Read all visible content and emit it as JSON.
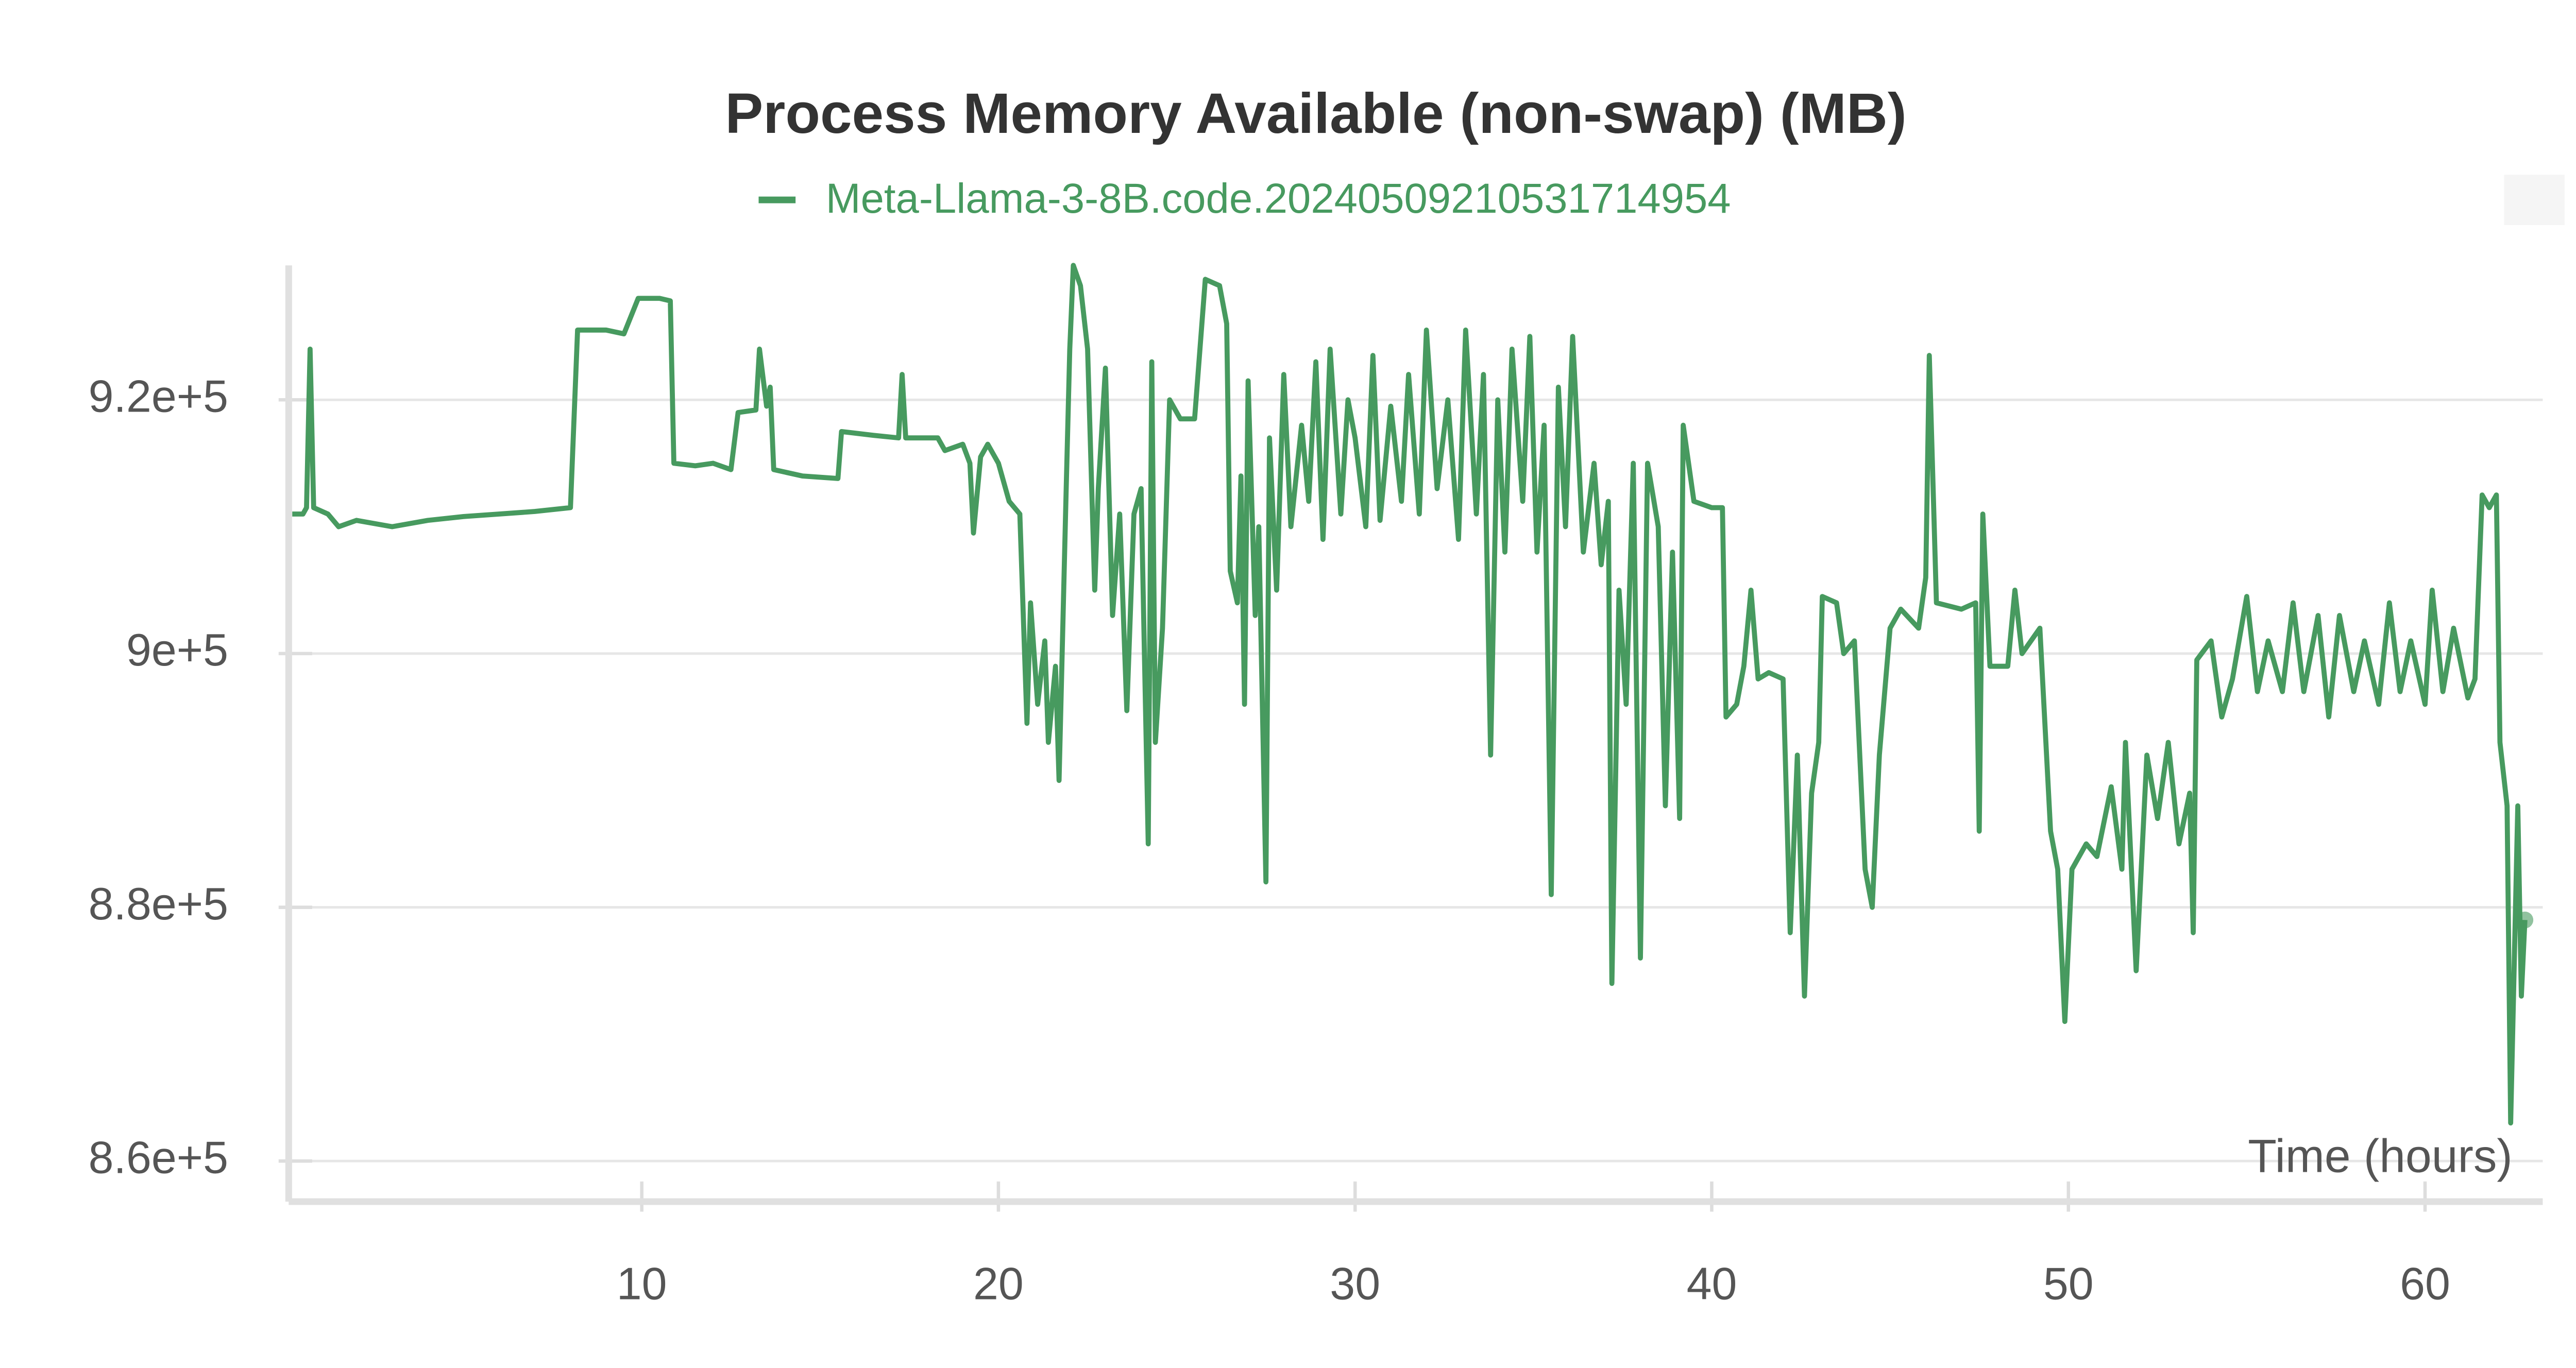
{
  "chart_data": {
    "type": "line",
    "title": "Process Memory Available (non-swap) (MB)",
    "x_label": "Time (hours)",
    "xlim": [
      0.1,
      63.3
    ],
    "ylim": [
      856800,
      930600
    ],
    "xticks": [
      10,
      20,
      30,
      40,
      50,
      60
    ],
    "yticks": [
      {
        "value": 860000,
        "label": "8.6e+5"
      },
      {
        "value": 880000,
        "label": "8.8e+5"
      },
      {
        "value": 900000,
        "label": "9e+5"
      },
      {
        "value": 920000,
        "label": "9.2e+5"
      }
    ],
    "grid": true,
    "x": [
      0.2,
      0.5,
      0.6,
      0.7,
      0.8,
      1.2,
      1.5,
      2,
      3,
      4,
      5,
      6,
      7,
      8,
      8.2,
      9,
      9.5,
      9.9,
      10.5,
      10.8,
      10.9,
      11.5,
      12,
      12.5,
      12.7,
      13.2,
      13.3,
      13.5,
      13.6,
      13.7,
      14.5,
      15.5,
      15.6,
      16.5,
      17.2,
      17.3,
      17.4,
      18.3,
      18.5,
      19,
      19.2,
      19.3,
      19.5,
      19.7,
      20,
      20.3,
      20.6,
      20.8,
      20.9,
      21.1,
      21.3,
      21.4,
      21.6,
      21.7,
      21.9,
      22,
      22.1,
      22.3,
      22.5,
      22.7,
      22.8,
      23,
      23.2,
      23.4,
      23.6,
      23.8,
      24,
      24.2,
      24.3,
      24.4,
      24.6,
      24.8,
      25.1,
      25.5,
      25.8,
      26.2,
      26.4,
      26.5,
      26.7,
      26.8,
      26.9,
      27,
      27.2,
      27.3,
      27.5,
      27.6,
      27.8,
      28,
      28.2,
      28.5,
      28.7,
      28.9,
      29.1,
      29.3,
      29.6,
      29.8,
      30,
      30.3,
      30.5,
      30.7,
      31,
      31.3,
      31.5,
      31.8,
      32,
      32.3,
      32.6,
      32.9,
      33.1,
      33.4,
      33.6,
      33.8,
      34,
      34.2,
      34.4,
      34.7,
      34.9,
      35.1,
      35.3,
      35.5,
      35.7,
      35.9,
      36.1,
      36.4,
      36.7,
      36.9,
      37.1,
      37.2,
      37.4,
      37.6,
      37.8,
      38,
      38.2,
      38.5,
      38.7,
      38.9,
      39.1,
      39.2,
      39.5,
      40,
      40.3,
      40.4,
      40.7,
      40.9,
      41.1,
      41.3,
      41.6,
      42,
      42.2,
      42.4,
      42.6,
      42.8,
      43,
      43.1,
      43.5,
      43.7,
      44,
      44.3,
      44.5,
      44.7,
      45,
      45.3,
      45.8,
      46,
      46.1,
      46.3,
      47,
      47.4,
      47.5,
      47.6,
      47.8,
      48.3,
      48.5,
      48.7,
      49.2,
      49.5,
      49.7,
      49.9,
      50.1,
      50.5,
      50.8,
      51.2,
      51.5,
      51.6,
      51.9,
      52.2,
      52.5,
      52.8,
      53.1,
      53.4,
      53.5,
      53.6,
      54,
      54.3,
      54.6,
      55,
      55.3,
      55.6,
      56,
      56.3,
      56.6,
      57,
      57.3,
      57.6,
      58,
      58.3,
      58.7,
      59,
      59.3,
      59.6,
      60,
      60.2,
      60.5,
      60.8,
      61.2,
      61.4,
      61.6,
      61.8,
      62,
      62.1,
      62.3,
      62.4,
      62.6,
      62.7,
      62.8
    ],
    "series": [
      {
        "name": "Meta-Llama-3-8B.code.20240509210531714954",
        "color": "#479a5f",
        "values": [
          911000,
          911000,
          911500,
          924000,
          911500,
          911000,
          910000,
          910500,
          910000,
          910500,
          910800,
          911000,
          911200,
          911500,
          925500,
          925500,
          925200,
          928000,
          928000,
          927800,
          915000,
          914800,
          915000,
          914500,
          919000,
          919200,
          924000,
          919500,
          921000,
          914500,
          914000,
          913800,
          917500,
          917200,
          917000,
          922000,
          917000,
          917000,
          916000,
          916500,
          915000,
          909500,
          915500,
          916500,
          915000,
          912000,
          911000,
          894500,
          904000,
          896000,
          901000,
          893000,
          899000,
          890000,
          913000,
          924000,
          930600,
          929000,
          924000,
          905000,
          913000,
          922500,
          903000,
          911000,
          895500,
          911000,
          913000,
          885000,
          923000,
          893000,
          902000,
          920000,
          918500,
          918500,
          929500,
          929000,
          926000,
          906500,
          904000,
          914000,
          896000,
          921500,
          903000,
          910000,
          882000,
          917000,
          905000,
          922000,
          910000,
          918000,
          912000,
          923000,
          909000,
          924000,
          911000,
          920000,
          917000,
          910000,
          923500,
          910500,
          919500,
          912000,
          922000,
          911000,
          925500,
          913000,
          920000,
          909000,
          925500,
          911000,
          922000,
          892000,
          920000,
          908000,
          924000,
          912000,
          925000,
          908000,
          918000,
          881000,
          921000,
          910000,
          925000,
          908000,
          915000,
          907000,
          912000,
          874000,
          905000,
          896000,
          915000,
          876000,
          915000,
          910000,
          888000,
          908000,
          887000,
          918000,
          912000,
          911500,
          911500,
          895000,
          896000,
          899000,
          905000,
          898000,
          898500,
          898000,
          878000,
          892000,
          873000,
          889000,
          893000,
          904500,
          904000,
          900000,
          901000,
          883000,
          880000,
          892000,
          902000,
          903500,
          902000,
          906000,
          923500,
          904000,
          903500,
          904000,
          886000,
          911000,
          899000,
          899000,
          905000,
          900000,
          902000,
          886000,
          883000,
          871000,
          883000,
          885000,
          884000,
          889500,
          883000,
          893000,
          875000,
          892000,
          887000,
          893000,
          885000,
          889000,
          878000,
          899500,
          901000,
          895000,
          898000,
          904500,
          897000,
          901000,
          897000,
          904000,
          897000,
          903000,
          895000,
          903000,
          897000,
          901000,
          896000,
          904000,
          897000,
          901000,
          896000,
          905000,
          897000,
          902000,
          896500,
          898000,
          912500,
          911500,
          912500,
          893000,
          888000,
          863000,
          888000,
          873000,
          879000
        ]
      }
    ]
  }
}
